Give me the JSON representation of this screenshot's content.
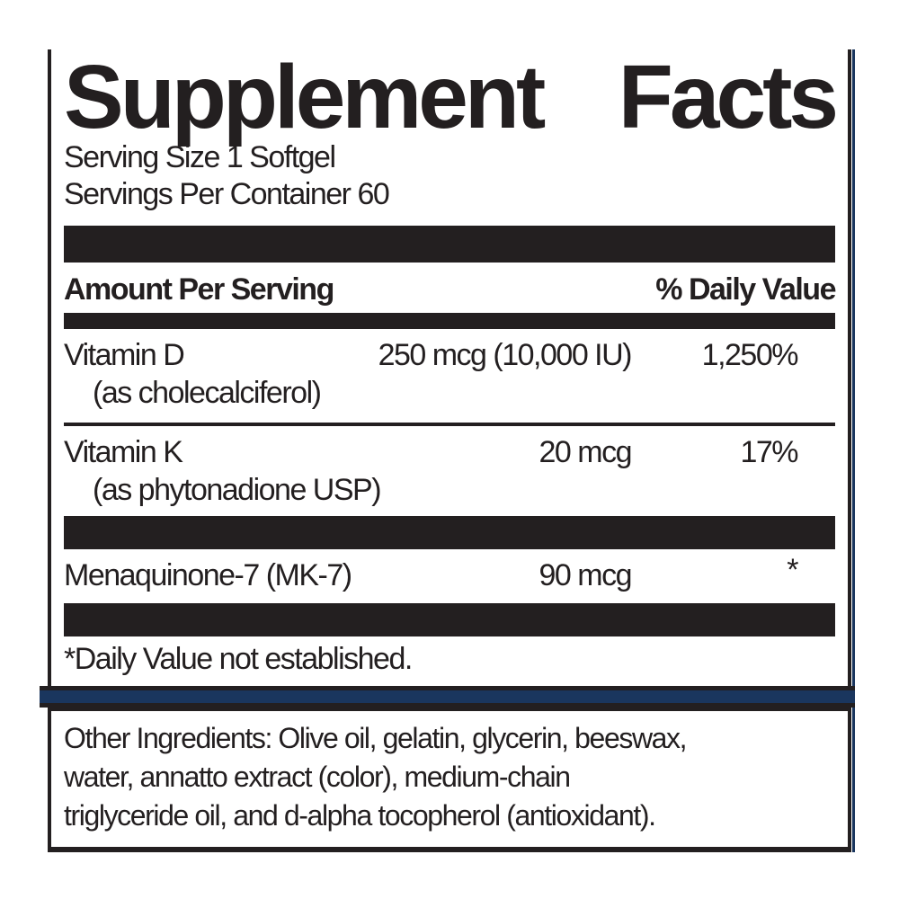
{
  "label": {
    "title_words": {
      "w1": "Supplement",
      "w2": "Facts"
    },
    "serving_size": "Serving Size 1 Softgel",
    "servings_per_container": "Servings Per Container 60",
    "header": {
      "amount_label": "Amount Per Serving",
      "daily_value_label": "% Daily Value"
    },
    "rows": [
      {
        "name": "Vitamin D",
        "detail": "(as cholecalciferol)",
        "amount": "250 mcg (10,000 IU)",
        "dv": "1,250%"
      },
      {
        "name": "Vitamin K",
        "detail": "(as phytonadione USP)",
        "amount": "20 mcg",
        "dv": "17%"
      },
      {
        "name": "Menaquinone-7 (MK-7)",
        "amount": "90 mcg",
        "dv": "*"
      }
    ],
    "footnote": "*Daily Value not established.",
    "other_ingredients": {
      "line1": "Other Ingredients: Olive oil, gelatin, glycerin, beeswax,",
      "line2": "water, annatto extract (color), medium-chain",
      "line3": "triglyceride oil, and d-alpha tocopherol (antioxidant)."
    },
    "colors": {
      "ink": "#231f20",
      "navy": "#1a365e",
      "background": "#ffffff"
    }
  }
}
